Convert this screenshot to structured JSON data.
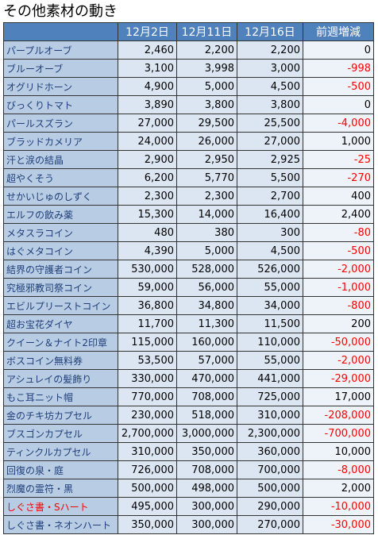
{
  "header": {
    "title": "その他素材の動き"
  },
  "table": {
    "columns": [
      "12月2日",
      "12月11日",
      "12月16日",
      "前週増減"
    ],
    "negative_color": "#ff0000",
    "rows": [
      {
        "name": "パープルオーブ",
        "cells": [
          "2,460",
          "2,200",
          "2,200",
          "0"
        ]
      },
      {
        "name": "ブルーオーブ",
        "cells": [
          "3,100",
          "3,998",
          "3,000",
          "-998"
        ]
      },
      {
        "name": "オグリドホーン",
        "cells": [
          "4,900",
          "5,000",
          "4,500",
          "-500"
        ]
      },
      {
        "name": "びっくりトマト",
        "cells": [
          "3,890",
          "3,800",
          "3,800",
          "0"
        ]
      },
      {
        "name": "パールスズラン",
        "cells": [
          "27,000",
          "29,500",
          "25,500",
          "-4,000"
        ]
      },
      {
        "name": "ブラッドカメリア",
        "cells": [
          "24,000",
          "26,000",
          "27,000",
          "1,000"
        ]
      },
      {
        "name": "汗と涙の結晶",
        "cells": [
          "2,900",
          "2,950",
          "2,925",
          "-25"
        ]
      },
      {
        "name": "超やくそう",
        "cells": [
          "6,200",
          "5,770",
          "5,500",
          "-270"
        ]
      },
      {
        "name": "せかいじゅのしずく",
        "cells": [
          "2,300",
          "2,300",
          "2,700",
          "400"
        ]
      },
      {
        "name": "エルフの飲み薬",
        "cells": [
          "15,300",
          "14,000",
          "16,400",
          "2,400"
        ]
      },
      {
        "name": "メタスラコイン",
        "cells": [
          "480",
          "380",
          "300",
          "-80"
        ]
      },
      {
        "name": "はぐメタコイン",
        "cells": [
          "4,390",
          "5,000",
          "4,500",
          "-500"
        ]
      },
      {
        "name": "結界の守護者コイン",
        "cells": [
          "530,000",
          "528,000",
          "526,000",
          "-2,000"
        ]
      },
      {
        "name": "究極邪教司祭コイン",
        "cells": [
          "59,000",
          "56,000",
          "55,000",
          "-1,000"
        ]
      },
      {
        "name": "エビルプリーストコイン",
        "cells": [
          "36,800",
          "34,800",
          "34,000",
          "-800"
        ]
      },
      {
        "name": "超お宝花ダイヤ",
        "cells": [
          "11,700",
          "11,300",
          "11,500",
          "200"
        ]
      },
      {
        "name": "クイーン＆ナイト2印章",
        "cells": [
          "115,000",
          "160,000",
          "110,000",
          "-50,000"
        ]
      },
      {
        "name": "ボスコイン無料券",
        "cells": [
          "53,500",
          "57,000",
          "55,000",
          "-2,000"
        ]
      },
      {
        "name": "アシュレイの髪飾り",
        "cells": [
          "330,000",
          "470,000",
          "441,000",
          "-29,000"
        ]
      },
      {
        "name": "もこ耳ニット帽",
        "cells": [
          "770,000",
          "708,000",
          "725,000",
          "17,000"
        ]
      },
      {
        "name": "金のチキ坊カプセル",
        "cells": [
          "230,000",
          "518,000",
          "310,000",
          "-208,000"
        ]
      },
      {
        "name": "ブスゴンカプセル",
        "cells": [
          "2,700,000",
          "3,000,000",
          "2,300,000",
          "-700,000"
        ]
      },
      {
        "name": "ティンクルカプセル",
        "cells": [
          "310,000",
          "350,000",
          "360,000",
          "10,000"
        ]
      },
      {
        "name": "回復の泉・庭",
        "cells": [
          "726,000",
          "708,000",
          "700,000",
          "-8,000"
        ]
      },
      {
        "name": "烈魔の霊符・黒",
        "cells": [
          "500,000",
          "498,000",
          "500,000",
          "2,000"
        ]
      },
      {
        "name": "しぐさ書・Sハート",
        "name_color": "#ff0000",
        "cells": [
          "495,000",
          "300,000",
          "290,000",
          "-10,000"
        ]
      },
      {
        "name": "しぐさ書・ネオンハート",
        "cells": [
          "350,000",
          "300,000",
          "270,000",
          "-30,000"
        ]
      }
    ]
  }
}
